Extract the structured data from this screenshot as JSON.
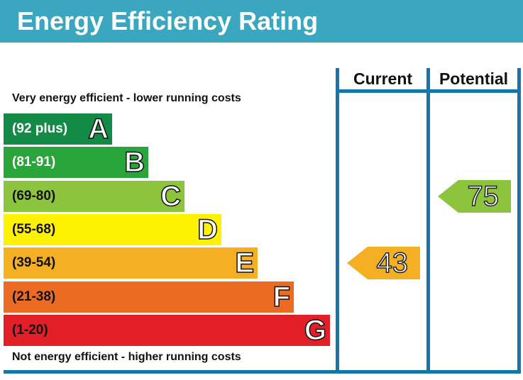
{
  "header": {
    "title": "Energy Efficiency Rating",
    "color": "#3aa6bf"
  },
  "columns": {
    "current_label": "Current",
    "potential_label": "Potential"
  },
  "notes": {
    "top": "Very energy efficient - lower running costs",
    "bottom": "Not energy efficient - higher running costs"
  },
  "chart_data": {
    "type": "bar",
    "title": "Energy Efficiency Rating",
    "bands": [
      {
        "range": "(92 plus)",
        "letter": "A",
        "color": "#138a45",
        "text_color": "#ffffff"
      },
      {
        "range": "(81-91)",
        "letter": "B",
        "color": "#2aa53b",
        "text_color": "#ffffff"
      },
      {
        "range": "(69-80)",
        "letter": "C",
        "color": "#8dc43e",
        "text_color": "#111111"
      },
      {
        "range": "(55-68)",
        "letter": "D",
        "color": "#fff200",
        "text_color": "#111111"
      },
      {
        "range": "(39-54)",
        "letter": "E",
        "color": "#f4af23",
        "text_color": "#111111"
      },
      {
        "range": "(21-38)",
        "letter": "F",
        "color": "#ec6b22",
        "text_color": "#111111"
      },
      {
        "range": "(1-20)",
        "letter": "G",
        "color": "#e21f26",
        "text_color": "#111111"
      }
    ],
    "current": {
      "value": "43",
      "band": "E",
      "color": "#f4af23"
    },
    "potential": {
      "value": "75",
      "band": "C",
      "color": "#8dc43e"
    }
  }
}
